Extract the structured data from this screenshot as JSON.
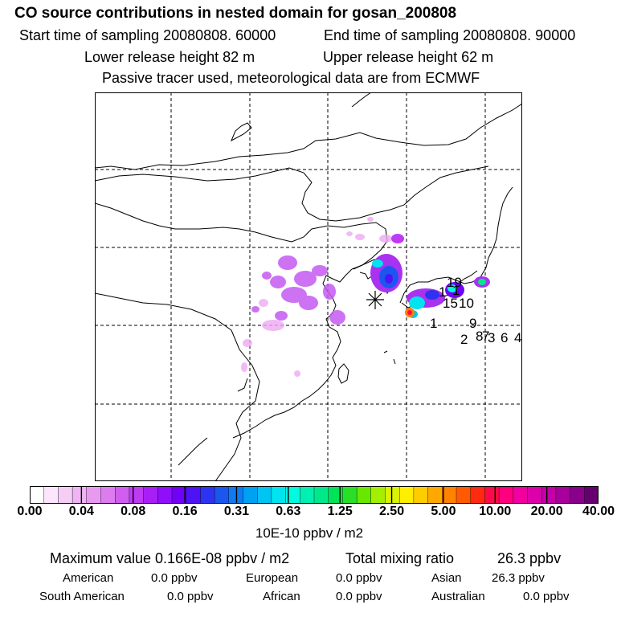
{
  "header": {
    "title": "CO  source contributions in nested domain for gosan_200808",
    "start_time": "Start time of sampling 20080808. 60000",
    "end_time": "End time of sampling 20080808. 90000",
    "lower_release": "Lower release height   82 m",
    "upper_release": "Upper release height   62 m",
    "tracer_info": "Passive tracer used, meteorological data are from ECMWF"
  },
  "map": {
    "receptor_symbol": "asterisk",
    "release_labels": [
      "1",
      "2",
      "3",
      "4",
      "6",
      "7",
      "8",
      "9",
      "10",
      "15",
      "19"
    ]
  },
  "colorbar": {
    "tick_labels": [
      "0.00",
      "0.04",
      "0.08",
      "0.16",
      "0.31",
      "0.63",
      "1.25",
      "2.50",
      "5.00",
      "10.00",
      "20.00",
      "40.00"
    ],
    "unit": "10E-10 ppbv / m2",
    "colors": [
      "#ffffff",
      "#fbe6fb",
      "#f5cef5",
      "#efb4f2",
      "#e89af0",
      "#dc7cee",
      "#cf5ef0",
      "#bf3af3",
      "#a81ff5",
      "#8f0ff8",
      "#7000f8",
      "#4d12f5",
      "#2f32f0",
      "#1b57ee",
      "#0e7cf0",
      "#00a0f2",
      "#00c4f2",
      "#00e4ef",
      "#00fbe0",
      "#00f0b4",
      "#00e88a",
      "#00e258",
      "#28e028",
      "#68e800",
      "#a4ee00",
      "#dcf200",
      "#ffee00",
      "#ffcc00",
      "#ffa800",
      "#ff8200",
      "#ff5a00",
      "#ff2a10",
      "#ff0a48",
      "#ff0080",
      "#f000a0",
      "#dc00aa",
      "#c400a8",
      "#a8009c",
      "#8a008a",
      "#660070"
    ]
  },
  "summary": {
    "max_value": "Maximum value  0.166E-08 ppbv / m2",
    "total_label": "Total mixing ratio",
    "total_value": "26.3 ppbv",
    "regions": [
      {
        "name": "American",
        "value": "0.0 ppbv"
      },
      {
        "name": "European",
        "value": "0.0 ppbv"
      },
      {
        "name": "Asian",
        "value": "26.3 ppbv"
      },
      {
        "name": "South American",
        "value": "0.0 ppbv"
      },
      {
        "name": "African",
        "value": "0.0 ppbv"
      },
      {
        "name": "Australian",
        "value": "0.0 ppbv"
      }
    ]
  }
}
